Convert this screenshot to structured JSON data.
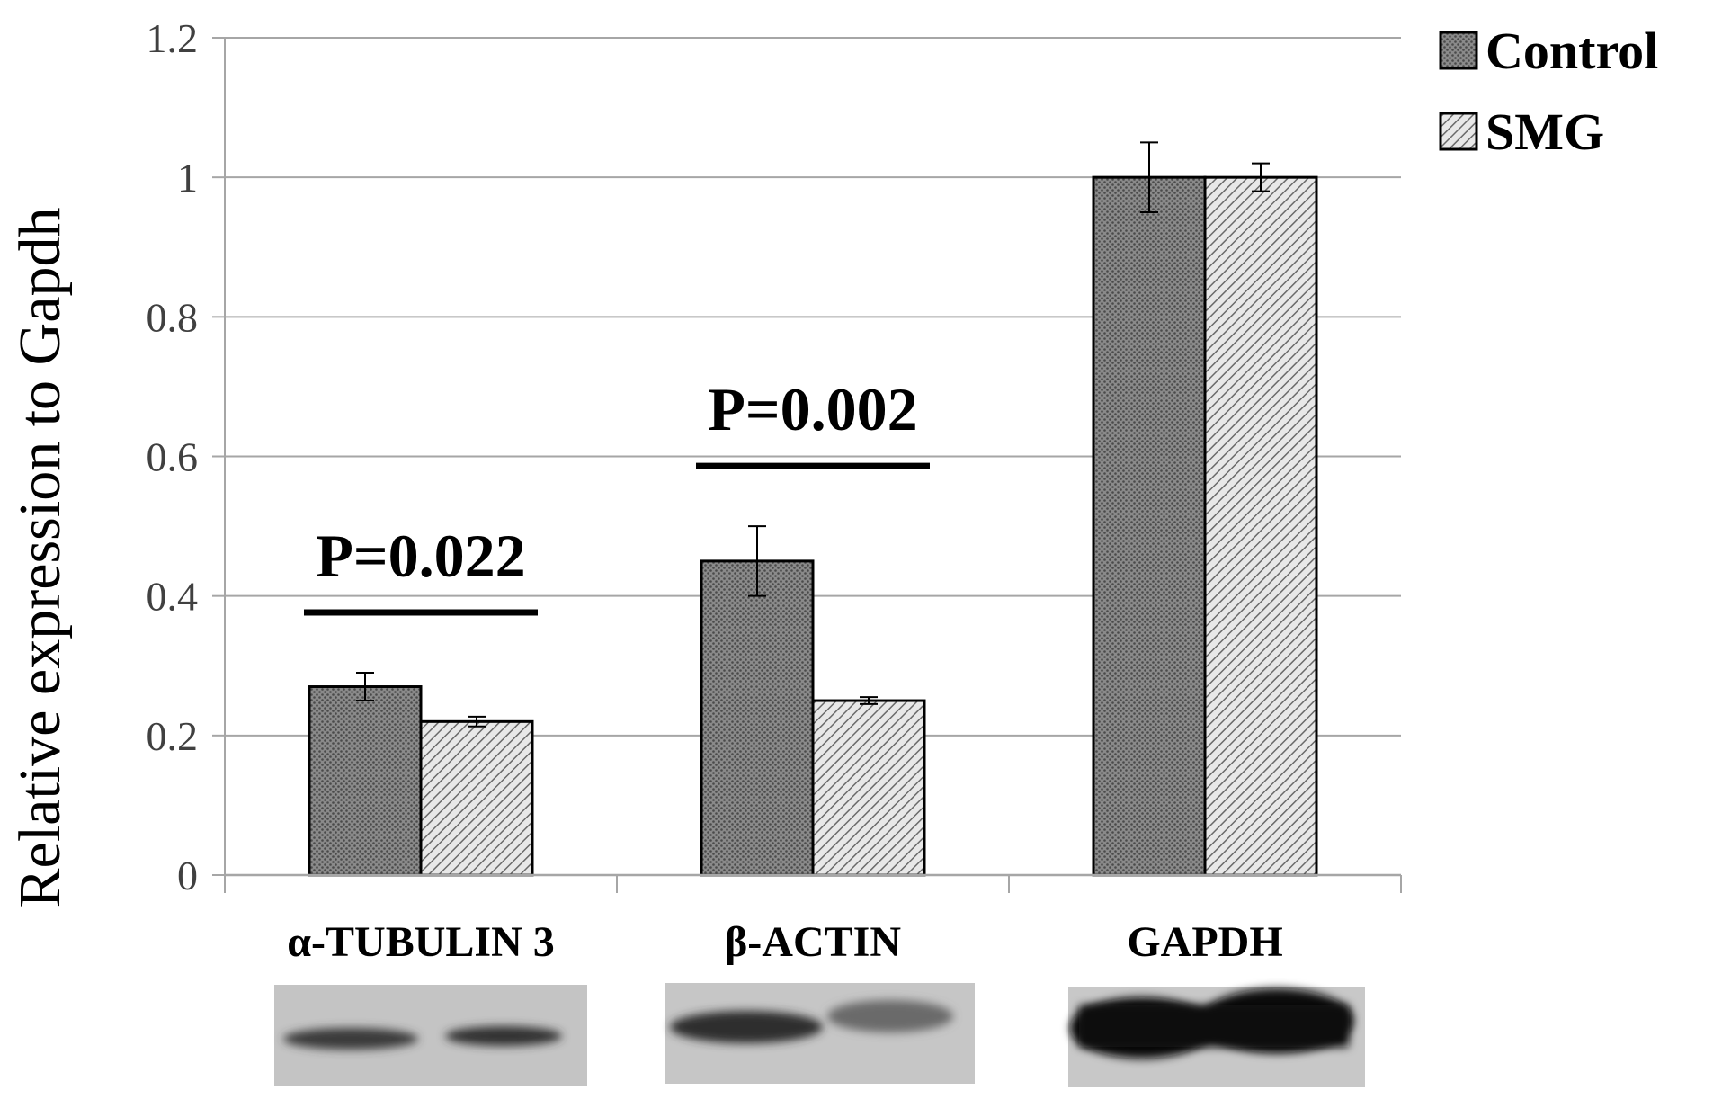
{
  "chart_data": {
    "type": "bar",
    "ylabel": "Relative expression to Gapdh",
    "xlabel": "",
    "ylim": [
      0,
      1.2
    ],
    "yticks": [
      "0",
      "0.2",
      "0.4",
      "0.6",
      "0.8",
      "1",
      "1.2"
    ],
    "grid": true,
    "legend_position": "top-right",
    "categories": [
      "α-TUBULIN 3",
      "β-ACTIN",
      "GAPDH"
    ],
    "series": [
      {
        "name": "Control",
        "values": [
          0.27,
          0.45,
          1.0
        ],
        "errors": [
          0.02,
          0.05,
          0.05
        ],
        "pattern": "dotted-dark"
      },
      {
        "name": "SMG",
        "values": [
          0.22,
          0.25,
          1.0
        ],
        "errors": [
          0.007,
          0.005,
          0.02
        ],
        "pattern": "diagonal-hatch"
      }
    ],
    "annotations": [
      {
        "text": "P=0.022",
        "category": "α-TUBULIN 3"
      },
      {
        "text": "P=0.002",
        "category": "β-ACTIN"
      }
    ],
    "blot_images": [
      {
        "category": "α-TUBULIN 3",
        "description_icon": "western-blot-band"
      },
      {
        "category": "β-ACTIN",
        "description_icon": "western-blot-band"
      },
      {
        "category": "GAPDH",
        "description_icon": "western-blot-band"
      }
    ]
  }
}
